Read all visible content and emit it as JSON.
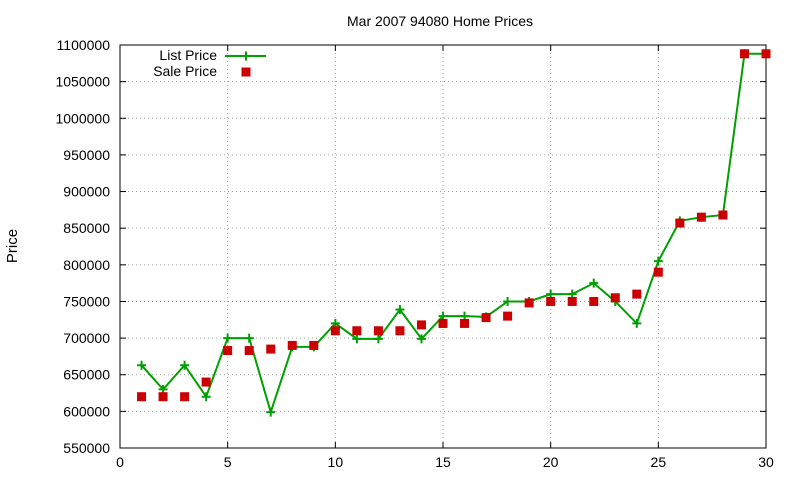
{
  "chart_data": {
    "type": "line",
    "title": "Mar 2007 94080 Home Prices",
    "xlabel": "",
    "ylabel": "Price",
    "xlim": [
      0,
      30
    ],
    "ylim": [
      550000,
      1100000
    ],
    "x_ticks": [
      0,
      5,
      10,
      15,
      20,
      25,
      30
    ],
    "y_ticks": [
      550000,
      600000,
      650000,
      700000,
      750000,
      800000,
      850000,
      900000,
      950000,
      1000000,
      1050000,
      1100000
    ],
    "grid": true,
    "legend_position": "top-left",
    "series": [
      {
        "name": "List Price",
        "style": "line-with-plus-markers",
        "color": "#00a000",
        "x": [
          1,
          2,
          3,
          4,
          5,
          6,
          7,
          8,
          9,
          10,
          11,
          12,
          13,
          14,
          15,
          16,
          17,
          18,
          19,
          20,
          21,
          22,
          23,
          24,
          25,
          26,
          27,
          28,
          29,
          30
        ],
        "values": [
          663000,
          630000,
          663000,
          620000,
          700000,
          700000,
          599000,
          688000,
          688000,
          720000,
          699000,
          699000,
          739000,
          699000,
          730000,
          730000,
          729000,
          750000,
          750000,
          760000,
          760000,
          775000,
          750000,
          720000,
          805000,
          860000,
          865000,
          868000,
          1088000,
          1088000
        ]
      },
      {
        "name": "Sale Price",
        "style": "square-markers",
        "color": "#cc0000",
        "x": [
          1,
          2,
          3,
          4,
          5,
          6,
          7,
          8,
          9,
          10,
          11,
          12,
          13,
          14,
          15,
          16,
          17,
          18,
          19,
          20,
          21,
          22,
          23,
          24,
          25,
          26,
          27,
          28,
          29,
          30
        ],
        "values": [
          620000,
          620000,
          620000,
          640000,
          683000,
          683000,
          685000,
          690000,
          690000,
          710000,
          710000,
          710000,
          710000,
          718000,
          720000,
          720000,
          728000,
          730000,
          748000,
          750000,
          750000,
          750000,
          755000,
          760000,
          790000,
          857000,
          865000,
          868000,
          1088000,
          1088000
        ]
      }
    ]
  }
}
